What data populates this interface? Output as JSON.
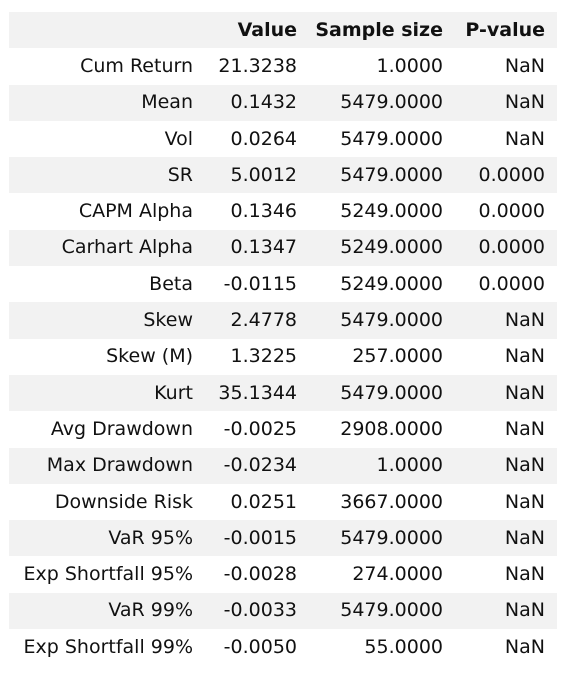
{
  "table": {
    "columns": [
      "",
      "Value",
      "Sample size",
      "P-value"
    ],
    "rows": [
      {
        "label": "Cum Return",
        "value": "21.3238",
        "sample_size": "1.0000",
        "p_value": "NaN"
      },
      {
        "label": "Mean",
        "value": "0.1432",
        "sample_size": "5479.0000",
        "p_value": "NaN"
      },
      {
        "label": "Vol",
        "value": "0.0264",
        "sample_size": "5479.0000",
        "p_value": "NaN"
      },
      {
        "label": "SR",
        "value": "5.0012",
        "sample_size": "5479.0000",
        "p_value": "0.0000"
      },
      {
        "label": "CAPM Alpha",
        "value": "0.1346",
        "sample_size": "5249.0000",
        "p_value": "0.0000"
      },
      {
        "label": "Carhart Alpha",
        "value": "0.1347",
        "sample_size": "5249.0000",
        "p_value": "0.0000"
      },
      {
        "label": "Beta",
        "value": "-0.0115",
        "sample_size": "5249.0000",
        "p_value": "0.0000"
      },
      {
        "label": "Skew",
        "value": "2.4778",
        "sample_size": "5479.0000",
        "p_value": "NaN"
      },
      {
        "label": "Skew (M)",
        "value": "1.3225",
        "sample_size": "257.0000",
        "p_value": "NaN"
      },
      {
        "label": "Kurt",
        "value": "35.1344",
        "sample_size": "5479.0000",
        "p_value": "NaN"
      },
      {
        "label": "Avg Drawdown",
        "value": "-0.0025",
        "sample_size": "2908.0000",
        "p_value": "NaN"
      },
      {
        "label": "Max Drawdown",
        "value": "-0.0234",
        "sample_size": "1.0000",
        "p_value": "NaN"
      },
      {
        "label": "Downside Risk",
        "value": "0.0251",
        "sample_size": "3667.0000",
        "p_value": "NaN"
      },
      {
        "label": "VaR 95%",
        "value": "-0.0015",
        "sample_size": "5479.0000",
        "p_value": "NaN"
      },
      {
        "label": "Exp Shortfall 95%",
        "value": "-0.0028",
        "sample_size": "274.0000",
        "p_value": "NaN"
      },
      {
        "label": "VaR 99%",
        "value": "-0.0033",
        "sample_size": "5479.0000",
        "p_value": "NaN"
      },
      {
        "label": "Exp Shortfall 99%",
        "value": "-0.0050",
        "sample_size": "55.0000",
        "p_value": "NaN"
      }
    ]
  }
}
